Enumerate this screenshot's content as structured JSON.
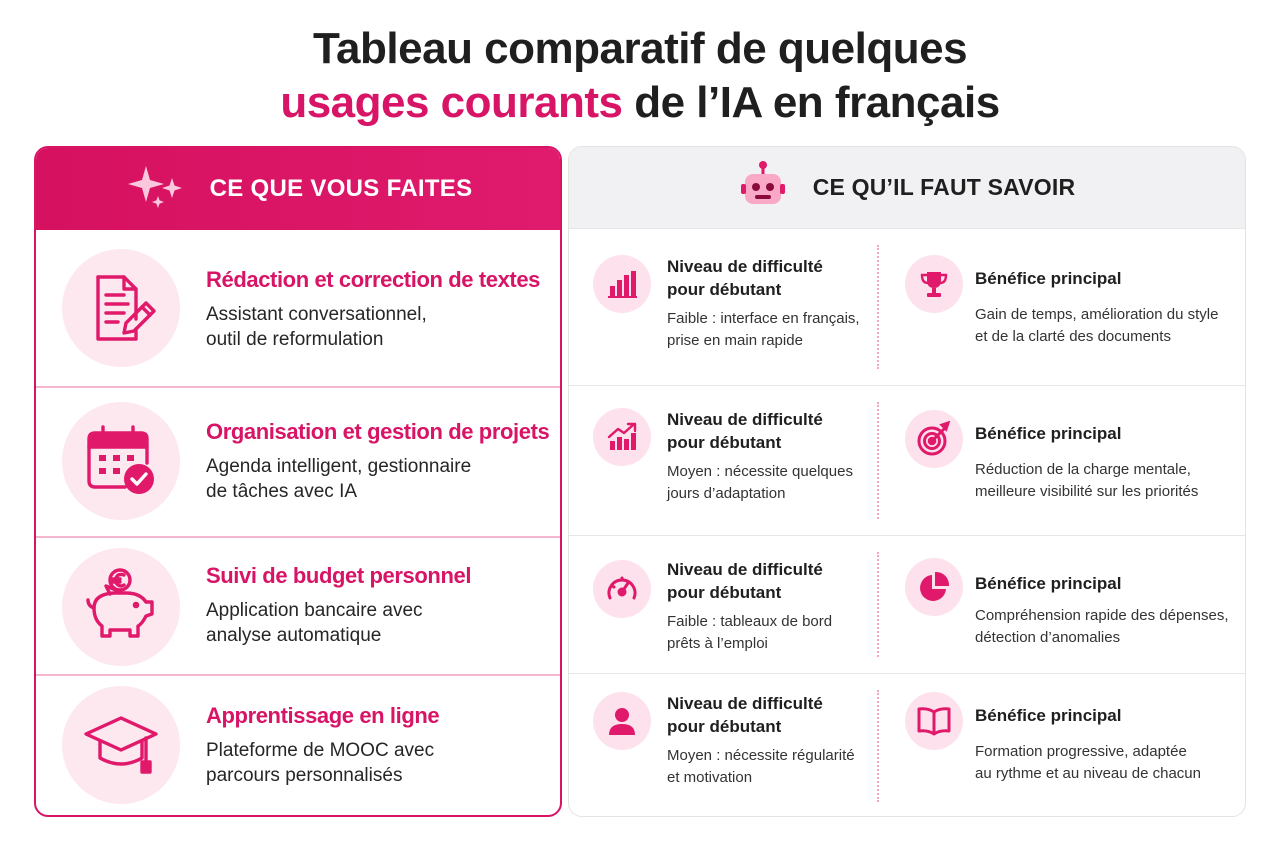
{
  "title": {
    "line1": "Tableau comparatif de quelques",
    "line2_accent": "usages courants",
    "line2_rest": " de l’IA en français"
  },
  "colors": {
    "accent": "#d81466",
    "accent_light": "#fde8f0",
    "header_gray": "#f1f1f3"
  },
  "left": {
    "header": "CE QUE VOUS FAITES",
    "header_icon": "sparkles-icon",
    "rows": [
      {
        "icon": "document-pencil-icon",
        "title": "Rédaction et correction de textes",
        "desc_line1": "Assistant conversationnel,",
        "desc_line2": "outil de reformulation"
      },
      {
        "icon": "calendar-check-icon",
        "title": "Organisation et gestion de projets",
        "desc_line1": "Agenda intelligent, gestionnaire",
        "desc_line2": "de tâches avec IA"
      },
      {
        "icon": "piggy-bank-euro-icon",
        "title": "Suivi de budget personnel",
        "desc_line1": "Application bancaire avec",
        "desc_line2": "analyse automatique"
      },
      {
        "icon": "graduation-cap-icon",
        "title": "Apprentissage en ligne",
        "desc_line1": "Plateforme de MOOC avec",
        "desc_line2": "parcours personnalisés"
      }
    ]
  },
  "right": {
    "header": "CE QU’IL FAUT SAVOIR",
    "header_icon": "robot-icon",
    "rows": [
      {
        "difficulty": {
          "icon": "bar-chart-icon",
          "title_line1": "Niveau de difficulté",
          "title_line2": "pour débutant",
          "desc_line1": "Faible : interface en français,",
          "desc_line2": "prise en main rapide"
        },
        "benefit": {
          "icon": "trophy-icon",
          "title": "Bénéfice principal",
          "desc_line1": "Gain de temps, amélioration du style",
          "desc_line2": "et de la clarté des documents"
        }
      },
      {
        "difficulty": {
          "icon": "trending-up-icon",
          "title_line1": "Niveau de difficulté",
          "title_line2": "pour débutant",
          "desc_line1": "Moyen : nécessite quelques",
          "desc_line2": "jours d’adaptation"
        },
        "benefit": {
          "icon": "target-icon",
          "title": "Bénéfice principal",
          "desc_line1": "Réduction de la charge mentale,",
          "desc_line2": "meilleure visibilité sur les priorités"
        }
      },
      {
        "difficulty": {
          "icon": "gauge-icon",
          "title_line1": "Niveau de difficulté",
          "title_line2": "pour débutant",
          "desc_line1": "Faible : tableaux de bord",
          "desc_line2": "prêts à l’emploi"
        },
        "benefit": {
          "icon": "pie-chart-icon",
          "title": "Bénéfice principal",
          "desc_line1": "Compréhension rapide des dépenses,",
          "desc_line2": "détection d’anomalies"
        }
      },
      {
        "difficulty": {
          "icon": "user-icon",
          "title_line1": "Niveau de difficulté",
          "title_line2": "pour débutant",
          "desc_line1": "Moyen : nécessite régularité",
          "desc_line2": "et motivation"
        },
        "benefit": {
          "icon": "open-book-icon",
          "title": "Bénéfice principal",
          "desc_line1": "Formation progressive, adaptée",
          "desc_line2": "au rythme et au niveau de chacun"
        }
      }
    ]
  }
}
